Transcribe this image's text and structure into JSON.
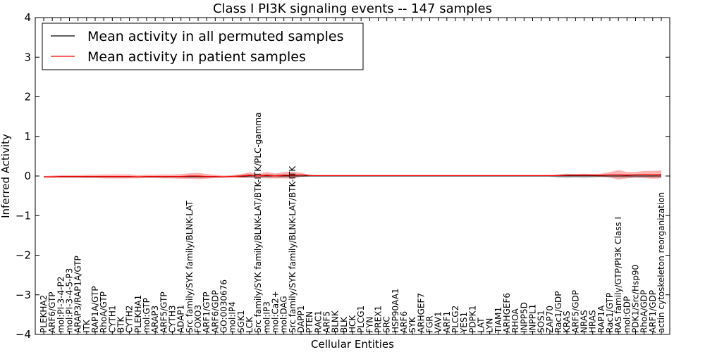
{
  "chart_data": {
    "type": "line",
    "title": "Class I PI3K signaling events -- 147 samples",
    "xlabel": "Cellular Entities",
    "ylabel": "Inferred Activity",
    "ylim": [
      -4,
      4
    ],
    "yticks": [
      -4,
      -3,
      -2,
      -1,
      0,
      1,
      2,
      3,
      4
    ],
    "grid": false,
    "legend_position": "top-left",
    "categories": [
      "PLEKHA2",
      "ARF6/GTP",
      "mol:PI-3-4-P2",
      "mol:PI-3-4-5-P3",
      "ARAP3/RAP1A/GTP",
      "ITK",
      "RAP1A/GTP",
      "RhoA/GTP",
      "CYTH1",
      "BTK",
      "CYTH2",
      "PLEKHA1",
      "mol:GTP",
      "ARAP3",
      "ARF5/GTP",
      "CYTH3",
      "ADAP1",
      "Src family/SYK family/BLNK-LAT",
      "FOXO3",
      "ARF1/GTP",
      "ARF6/GDP",
      "GO:0030676",
      "mol:IP4",
      "SGK1",
      "LCK",
      "Src family/SYK family/BLNK-LAT/BTK-ITK/PLC-gamma",
      "mol:IP3",
      "mol:Ca2+",
      "mol:DAG",
      "Src family/SYK family/BLNK-LAT/BTK-ITK",
      "DAPP1",
      "PTEN",
      "RAC1",
      "ARF5",
      "BLNK",
      "BLK",
      "HCK",
      "PLCG1",
      "FYN",
      "PREX1",
      "SRC",
      "HSP90AA1",
      "ARF6",
      "SYK",
      "ARHGEF7",
      "FGR",
      "VAV1",
      "ARF1",
      "PLCG2",
      "YES1",
      "PDPK1",
      "LAT",
      "LYN",
      "TIAM1",
      "ARHGEF6",
      "RHOA",
      "INPP5D",
      "INPPL1",
      "SOS1",
      "ZAP70",
      "Rac1/GDP",
      "KRAS",
      "ARF5/GDP",
      "NRAS",
      "HRAS",
      "RAP1A",
      "Rac1/GTP",
      "RAS family/GTP/PI3K Class I",
      "mol:GDP",
      "PDK1/Src/Hsp90",
      "RhoA/GDP",
      "ARF1/GDP",
      "actin cytoskeleton reorganization"
    ],
    "series": [
      {
        "name": "Mean activity in all permuted samples",
        "color": "#000000",
        "values": [
          -0.02,
          -0.02,
          -0.02,
          -0.02,
          -0.02,
          -0.02,
          -0.02,
          -0.02,
          -0.02,
          -0.02,
          -0.02,
          -0.02,
          -0.02,
          -0.02,
          -0.02,
          -0.02,
          -0.02,
          -0.02,
          -0.02,
          -0.02,
          -0.02,
          -0.02,
          -0.01,
          -0.01,
          0.0,
          0.0,
          0.0,
          0.0,
          0.0,
          0.0,
          0.0,
          0.0,
          0.0,
          0.0,
          0.0,
          0.0,
          0.0,
          0.0,
          0.0,
          0.0,
          0.0,
          0.0,
          0.0,
          0.0,
          0.0,
          0.0,
          0.0,
          0.0,
          0.0,
          0.0,
          0.0,
          0.0,
          0.0,
          0.0,
          0.0,
          0.0,
          0.0,
          0.0,
          0.0,
          0.0,
          0.0,
          0.0,
          0.0,
          0.0,
          0.0,
          0.0,
          0.0,
          0.0,
          0.0,
          0.0,
          0.0,
          0.0,
          0.0
        ],
        "band": [
          0.02,
          0.02,
          0.02,
          0.02,
          0.02,
          0.02,
          0.02,
          0.02,
          0.02,
          0.02,
          0.02,
          0.02,
          0.02,
          0.02,
          0.02,
          0.02,
          0.02,
          0.02,
          0.02,
          0.02,
          0.02,
          0.02,
          0.02,
          0.04,
          0.05,
          0.05,
          0.05,
          0.05,
          0.05,
          0.04,
          0.02,
          0.01,
          0.01,
          0.01,
          0.01,
          0.01,
          0.01,
          0.01,
          0.01,
          0.01,
          0.01,
          0.01,
          0.01,
          0.01,
          0.01,
          0.01,
          0.01,
          0.01,
          0.01,
          0.01,
          0.01,
          0.01,
          0.01,
          0.01,
          0.01,
          0.01,
          0.01,
          0.01,
          0.01,
          0.01,
          0.05,
          0.06,
          0.05,
          0.06,
          0.05,
          0.03,
          0.04,
          0.05,
          0.05,
          0.05,
          0.05,
          0.05,
          0.05
        ]
      },
      {
        "name": "Mean activity in patient samples",
        "color": "#ff0000",
        "values": [
          -0.02,
          -0.02,
          -0.01,
          -0.01,
          -0.01,
          -0.01,
          -0.01,
          -0.01,
          -0.01,
          -0.01,
          -0.01,
          -0.02,
          -0.01,
          -0.01,
          -0.01,
          -0.01,
          -0.01,
          0.0,
          0.0,
          -0.01,
          -0.01,
          -0.02,
          -0.01,
          0.0,
          0.02,
          0.0,
          0.02,
          0.0,
          0.02,
          0.02,
          0.03,
          0.01,
          0.01,
          0.01,
          0.01,
          0.01,
          0.01,
          0.01,
          0.01,
          0.01,
          0.01,
          0.01,
          0.01,
          0.01,
          0.01,
          0.01,
          0.01,
          0.01,
          0.01,
          0.01,
          0.01,
          0.01,
          0.01,
          0.01,
          0.01,
          0.01,
          0.01,
          0.01,
          0.01,
          0.01,
          0.01,
          0.02,
          0.02,
          0.02,
          0.02,
          0.02,
          0.03,
          0.03,
          0.02,
          0.03,
          0.04,
          0.03,
          0.04
        ],
        "band": [
          0.02,
          0.03,
          0.03,
          0.03,
          0.03,
          0.04,
          0.04,
          0.05,
          0.05,
          0.05,
          0.05,
          0.04,
          0.04,
          0.04,
          0.05,
          0.05,
          0.06,
          0.07,
          0.08,
          0.06,
          0.04,
          0.03,
          0.03,
          0.05,
          0.07,
          0.05,
          0.08,
          0.06,
          0.08,
          0.09,
          0.05,
          0.02,
          0.01,
          0.01,
          0.01,
          0.01,
          0.01,
          0.01,
          0.01,
          0.01,
          0.01,
          0.01,
          0.01,
          0.01,
          0.01,
          0.01,
          0.01,
          0.01,
          0.01,
          0.01,
          0.01,
          0.01,
          0.01,
          0.01,
          0.01,
          0.01,
          0.01,
          0.01,
          0.01,
          0.01,
          0.02,
          0.03,
          0.03,
          0.03,
          0.03,
          0.04,
          0.07,
          0.12,
          0.08,
          0.07,
          0.09,
          0.1,
          0.1
        ]
      }
    ]
  }
}
